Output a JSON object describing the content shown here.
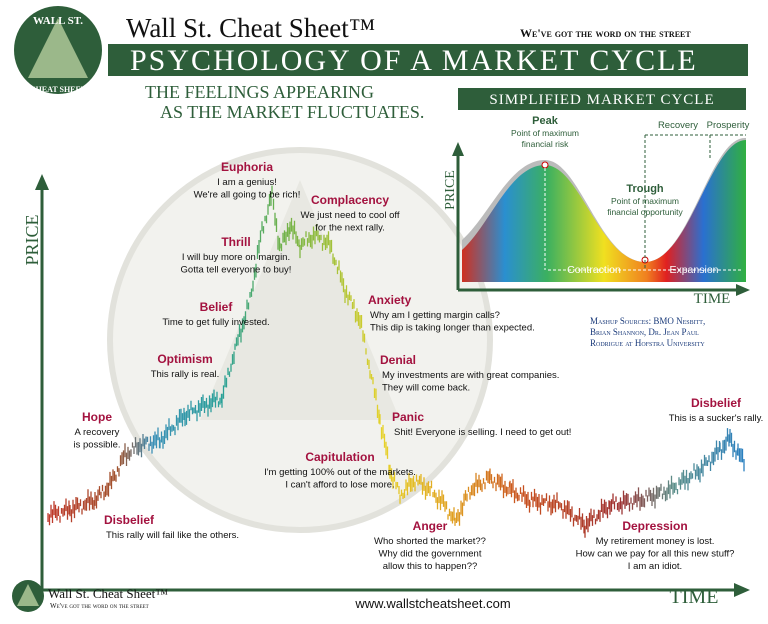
{
  "header": {
    "logo_top": "WALL ST.",
    "logo_bottom": "CHEAT SHEET",
    "brand": "Wall St. Cheat Sheet™",
    "tagline": "We've got the word on the street",
    "title": "Psychology of a Market Cycle",
    "subtitle": [
      "The feelings appearing",
      "as the market fluctuates."
    ]
  },
  "axes": {
    "y_label": "PRICE",
    "x_label": "TIME"
  },
  "stages": [
    {
      "label": "Euphoria",
      "text": [
        "I am a genius!",
        "We're all going to be rich!"
      ]
    },
    {
      "label": "Complacency",
      "text": [
        "We just need to cool off",
        "for the next rally."
      ]
    },
    {
      "label": "Thrill",
      "text": [
        "I will buy more on margin.",
        "Gotta tell everyone to buy!"
      ]
    },
    {
      "label": "Belief",
      "text": [
        "Time to get fully invested."
      ]
    },
    {
      "label": "Anxiety",
      "text": [
        "Why am I getting margin calls?",
        "This dip is taking longer than expected."
      ]
    },
    {
      "label": "Optimism",
      "text": [
        "This rally is real."
      ]
    },
    {
      "label": "Denial",
      "text": [
        "My investments are with great companies.",
        "They will come back."
      ]
    },
    {
      "label": "Hope",
      "text": [
        "A recovery",
        "is possible."
      ]
    },
    {
      "label": "Panic",
      "text": [
        "Shit! Everyone is selling. I need to get out!"
      ]
    },
    {
      "label": "Disbelief",
      "text": [
        "This is a sucker's rally."
      ]
    },
    {
      "label": "Capitulation",
      "text": [
        "I'm getting 100% out of the markets.",
        "I can't afford to lose more."
      ]
    },
    {
      "label": "Disbelief",
      "text": [
        "This rally will fail like the others."
      ]
    },
    {
      "label": "Anger",
      "text": [
        "Who shorted the market??",
        "Why did the government",
        "allow this to happen??"
      ]
    },
    {
      "label": "Depression",
      "text": [
        "My retirement money is lost.",
        "How can we pay for all this new stuff?",
        "I am an idiot."
      ]
    }
  ],
  "inset": {
    "title": "Simplified Market Cycle",
    "peak": "Peak",
    "peak_note": [
      "Point of maximum",
      "financial risk"
    ],
    "trough": "Trough",
    "trough_note": [
      "Point of maximum",
      "financial opportunity"
    ],
    "recovery": "Recovery",
    "prosperity": "Prosperity",
    "contraction": "Contraction",
    "expansion": "Expansion",
    "y_label": "PRICE",
    "x_label": "TIME"
  },
  "sources": [
    "Mashup Sources: BMO Nesbitt,",
    "Brian Shannon, Dr. Jean Paul",
    "Rodrigue at Hofstra University"
  ],
  "footer": {
    "brand": "Wall St. Cheat Sheet™",
    "tagline": "We've got the word on the street",
    "url": "www.wallstcheatsheet.com"
  }
}
